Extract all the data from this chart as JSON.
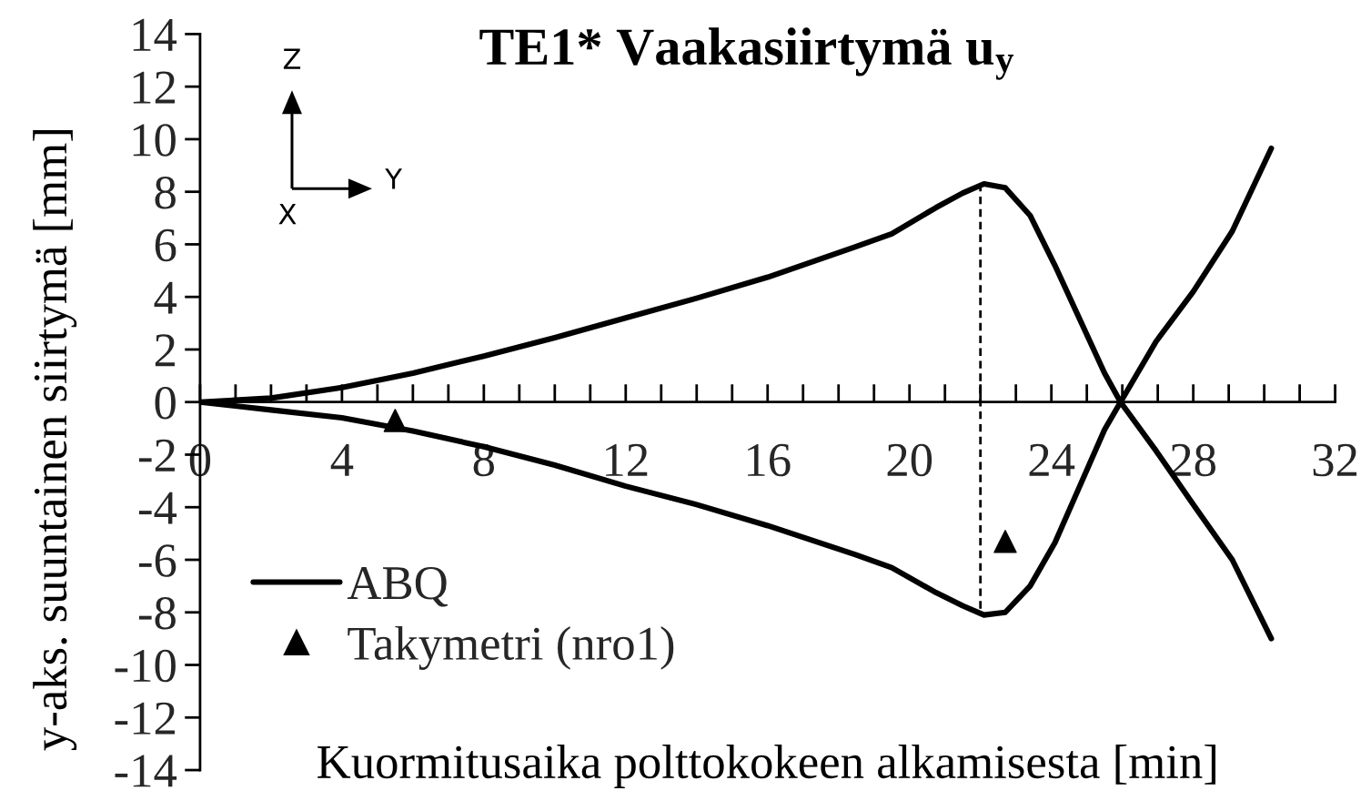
{
  "chart_data": {
    "type": "line",
    "title": "TE1* Vaakasiirtymä u$_{y}$",
    "xlabel": "Kuormitusaika polttokokeen alkamisesta [min]",
    "ylabel": "y-aks. suuntainen siirtymä [mm]",
    "annotations": [
      "Z",
      "Y",
      "X"
    ],
    "xlim": [
      0,
      32
    ],
    "xticks": [
      0,
      4,
      8,
      12,
      16,
      20,
      24,
      28,
      32
    ],
    "ylim": [
      -14,
      14
    ],
    "yticks": [
      -14,
      -12,
      -10,
      -8,
      -6,
      -4,
      -2,
      0,
      2,
      4,
      6,
      8,
      10,
      12,
      14
    ],
    "legend": "bottom left",
    "series": [
      {
        "name": "ABQ",
        "color": "#000000",
        "x": [
          0,
          2,
          4,
          6,
          8,
          10,
          12,
          14,
          16,
          18.46,
          19.5,
          20.75,
          21.5,
          22.1,
          22.7,
          23.4,
          24.1,
          24.8,
          25.5,
          25.95,
          26.95,
          28.0,
          29.1,
          30.2
        ],
        "values": [
          0,
          0.15,
          0.55,
          1.1,
          1.75,
          2.45,
          3.2,
          3.95,
          4.75,
          5.9,
          6.4,
          7.4,
          7.95,
          8.3,
          8.15,
          7.1,
          5.2,
          3.15,
          1.1,
          0,
          -1.85,
          -3.9,
          -6.0,
          -9.0
        ]
      },
      {
        "color": "#000000",
        "x": [
          0,
          2,
          4,
          6,
          8,
          10,
          12,
          14,
          16,
          18.46,
          19.5,
          20.75,
          21.5,
          22.1,
          22.7,
          23.4,
          24.1,
          24.8,
          25.5,
          25.95,
          26.95,
          28.0,
          29.1,
          30.2
        ],
        "values": [
          0,
          -0.3,
          -0.6,
          -1.1,
          -1.7,
          -2.4,
          -3.2,
          -3.9,
          -4.7,
          -5.8,
          -6.3,
          -7.25,
          -7.75,
          -8.1,
          -8.0,
          -7.0,
          -5.35,
          -3.2,
          -1.05,
          0,
          2.3,
          4.2,
          6.5,
          9.65
        ]
      },
      {
        "name": "Takymetri (nro1)",
        "type": "scatter",
        "color": "#000000",
        "marker": "triangle",
        "x": [
          5.5,
          22.7
        ],
        "values": [
          -0.7,
          -5.3
        ]
      },
      {
        "color": "#000000",
        "line_style": "dashed",
        "x": [
          22,
          22
        ],
        "values": [
          8.3,
          -8.1
        ]
      }
    ]
  }
}
